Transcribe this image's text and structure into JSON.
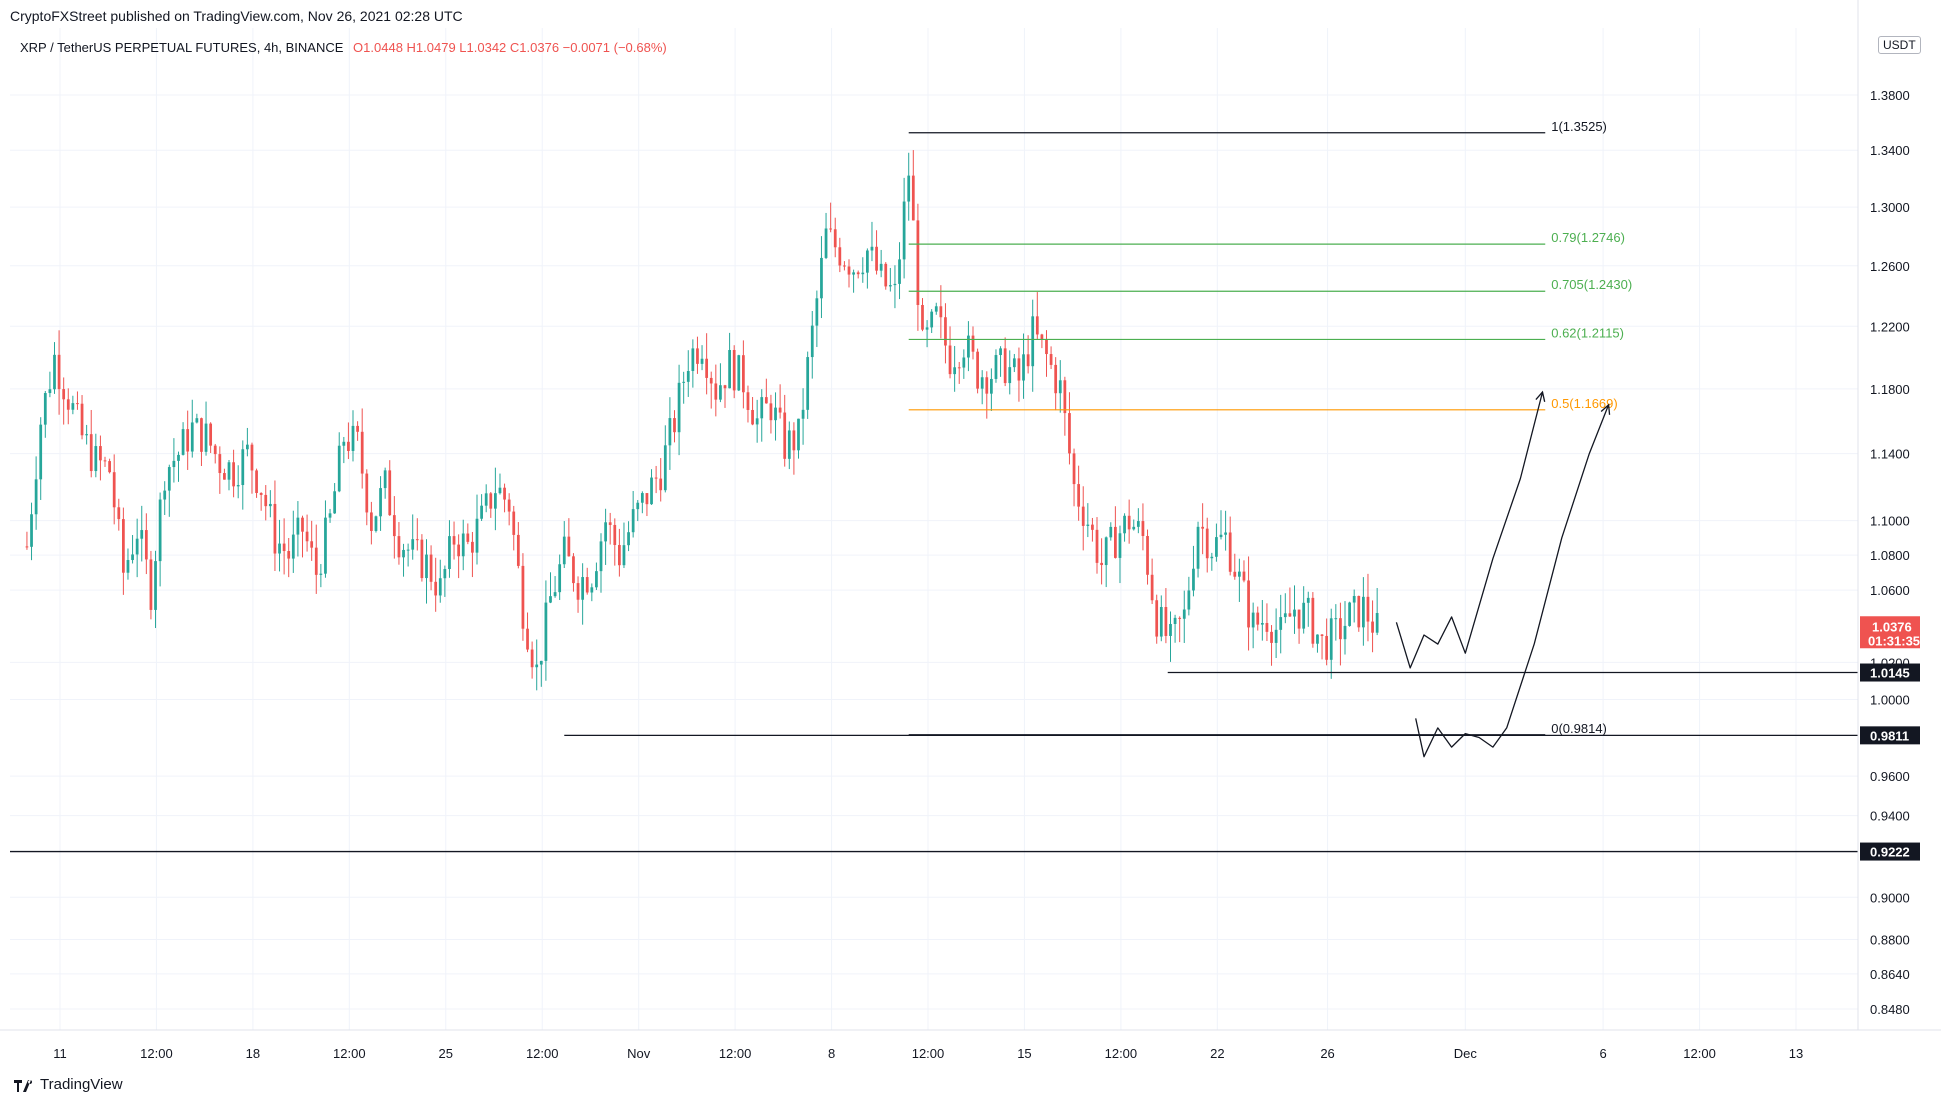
{
  "header": {
    "published": "CryptoFXStreet published on TradingView.com, Nov 26, 2021 02:28 UTC",
    "symbol": "XRP / TetherUS PERPETUAL FUTURES, 4h, BINANCE",
    "ohlc": "O1.0448  H1.0479  L1.0342  C1.0376  −0.0071  (−0.68%)"
  },
  "currency": "USDT",
  "brand": "TradingView",
  "chart_data": {
    "type": "candlestick",
    "y_axis": {
      "ticks": [
        "1.3800",
        "1.3400",
        "1.3000",
        "1.2600",
        "1.2200",
        "1.1800",
        "1.1400",
        "1.1000",
        "1.0800",
        "1.0600",
        "1.0200",
        "1.0000",
        "0.9600",
        "0.9400",
        "0.9000",
        "0.8800",
        "0.8640",
        "0.8480"
      ],
      "tick_values": [
        1.38,
        1.34,
        1.3,
        1.26,
        1.22,
        1.18,
        1.14,
        1.1,
        1.08,
        1.06,
        1.02,
        1.0,
        0.96,
        0.94,
        0.9,
        0.88,
        0.864,
        0.848
      ],
      "log_scale": true,
      "range": [
        0.84,
        1.42
      ]
    },
    "x_axis": {
      "ticks": [
        "11",
        "12:00",
        "18",
        "12:00",
        "25",
        "12:00",
        "Nov",
        "12:00",
        "8",
        "12:00",
        "15",
        "12:00",
        "22",
        "26",
        "Dec",
        "6",
        "12:00",
        "13"
      ],
      "tick_days": [
        11,
        14.5,
        18,
        21.5,
        25,
        28.5,
        32,
        35.5,
        39,
        42.5,
        46,
        49.5,
        53,
        57,
        62,
        67,
        70.5,
        74
      ]
    },
    "price_path": [
      [
        9.8,
        1.085
      ],
      [
        10.3,
        1.16
      ],
      [
        10.8,
        1.2
      ],
      [
        11.3,
        1.175
      ],
      [
        11.8,
        1.15
      ],
      [
        12.3,
        1.135
      ],
      [
        12.8,
        1.13
      ],
      [
        13.3,
        1.07
      ],
      [
        13.8,
        1.095
      ],
      [
        14.3,
        1.06
      ],
      [
        14.8,
        1.13
      ],
      [
        15.3,
        1.14
      ],
      [
        15.8,
        1.155
      ],
      [
        16.3,
        1.15
      ],
      [
        16.8,
        1.135
      ],
      [
        17.3,
        1.13
      ],
      [
        17.8,
        1.14
      ],
      [
        18.3,
        1.12
      ],
      [
        18.8,
        1.09
      ],
      [
        19.3,
        1.08
      ],
      [
        19.8,
        1.095
      ],
      [
        20.3,
        1.07
      ],
      [
        20.8,
        1.1
      ],
      [
        21.3,
        1.15
      ],
      [
        21.8,
        1.145
      ],
      [
        22.3,
        1.1
      ],
      [
        22.8,
        1.12
      ],
      [
        23.3,
        1.09
      ],
      [
        23.8,
        1.08
      ],
      [
        24.3,
        1.075
      ],
      [
        24.8,
        1.06
      ],
      [
        25.3,
        1.09
      ],
      [
        25.8,
        1.085
      ],
      [
        26.3,
        1.1
      ],
      [
        26.8,
        1.12
      ],
      [
        27.3,
        1.11
      ],
      [
        27.8,
        1.05
      ],
      [
        28.3,
        1.015
      ],
      [
        28.8,
        1.055
      ],
      [
        29.3,
        1.08
      ],
      [
        29.8,
        1.065
      ],
      [
        30.3,
        1.07
      ],
      [
        30.8,
        1.1
      ],
      [
        31.3,
        1.08
      ],
      [
        31.8,
        1.1
      ],
      [
        32.3,
        1.115
      ],
      [
        32.8,
        1.13
      ],
      [
        33.3,
        1.16
      ],
      [
        33.8,
        1.2
      ],
      [
        34.3,
        1.21
      ],
      [
        34.8,
        1.18
      ],
      [
        35.3,
        1.195
      ],
      [
        35.8,
        1.185
      ],
      [
        36.3,
        1.16
      ],
      [
        36.8,
        1.17
      ],
      [
        37.3,
        1.145
      ],
      [
        37.8,
        1.15
      ],
      [
        38.3,
        1.215
      ],
      [
        38.8,
        1.28
      ],
      [
        39.3,
        1.27
      ],
      [
        39.8,
        1.26
      ],
      [
        40.3,
        1.27
      ],
      [
        40.8,
        1.25
      ],
      [
        41.3,
        1.24
      ],
      [
        41.8,
        1.325
      ],
      [
        42.3,
        1.205
      ],
      [
        42.8,
        1.225
      ],
      [
        43.3,
        1.2
      ],
      [
        43.8,
        1.21
      ],
      [
        44.3,
        1.19
      ],
      [
        44.8,
        1.19
      ],
      [
        45.3,
        1.195
      ],
      [
        45.8,
        1.185
      ],
      [
        46.3,
        1.215
      ],
      [
        46.8,
        1.2
      ],
      [
        47.3,
        1.18
      ],
      [
        47.8,
        1.12
      ],
      [
        48.3,
        1.1
      ],
      [
        48.8,
        1.075
      ],
      [
        49.3,
        1.09
      ],
      [
        49.8,
        1.1
      ],
      [
        50.3,
        1.09
      ],
      [
        50.8,
        1.045
      ],
      [
        51.3,
        1.03
      ],
      [
        51.8,
        1.045
      ],
      [
        52.3,
        1.1
      ],
      [
        52.8,
        1.085
      ],
      [
        53.3,
        1.09
      ],
      [
        53.8,
        1.065
      ],
      [
        54.3,
        1.04
      ],
      [
        54.8,
        1.045
      ],
      [
        55.3,
        1.035
      ],
      [
        55.8,
        1.05
      ],
      [
        56.3,
        1.045
      ],
      [
        56.8,
        1.03
      ],
      [
        57.3,
        1.035
      ],
      [
        57.8,
        1.045
      ],
      [
        58.3,
        1.05
      ],
      [
        58.8,
        1.0376
      ]
    ],
    "fib_levels": [
      {
        "label": "1(1.3525)",
        "value": 1.3525,
        "color": "#131722"
      },
      {
        "label": "0.79(1.2746)",
        "value": 1.2746,
        "color": "#4caf50"
      },
      {
        "label": "0.705(1.2430)",
        "value": 1.243,
        "color": "#4caf50"
      },
      {
        "label": "0.62(1.2115)",
        "value": 1.2115,
        "color": "#4caf50"
      },
      {
        "label": "0.5(1.1669)",
        "value": 1.1669,
        "color": "#ff9800"
      },
      {
        "label": "0(0.9814)",
        "value": 0.9814,
        "color": "#131722"
      }
    ],
    "horizontal_levels": [
      {
        "label": "1.0145",
        "value": 1.0145
      },
      {
        "label": "0.9811",
        "value": 0.9811
      },
      {
        "label": "0.9222",
        "value": 0.9222
      }
    ],
    "current_price": {
      "label": "1.0376",
      "value": 1.0376,
      "countdown": "01:31:35",
      "color": "#ef5350"
    },
    "projection_paths": [
      [
        [
          59.5,
          1.042
        ],
        [
          60,
          1.017
        ],
        [
          60.5,
          1.035
        ],
        [
          61,
          1.03
        ],
        [
          61.5,
          1.045
        ],
        [
          62,
          1.025
        ],
        [
          63,
          1.078
        ],
        [
          64,
          1.125
        ],
        [
          64.8,
          1.178
        ]
      ],
      [
        [
          60.2,
          0.99
        ],
        [
          60.5,
          0.97
        ],
        [
          61,
          0.985
        ],
        [
          61.5,
          0.975
        ],
        [
          62,
          0.982
        ],
        [
          62.5,
          0.98
        ],
        [
          63,
          0.975
        ],
        [
          63.5,
          0.985
        ],
        [
          64.5,
          1.03
        ],
        [
          65.5,
          1.09
        ],
        [
          66.5,
          1.14
        ],
        [
          67.2,
          1.17
        ]
      ]
    ],
    "colors": {
      "up": "#26a69a",
      "down": "#ef5350",
      "grid": "#f0f3fa",
      "axis_border": "#e0e3eb"
    }
  }
}
